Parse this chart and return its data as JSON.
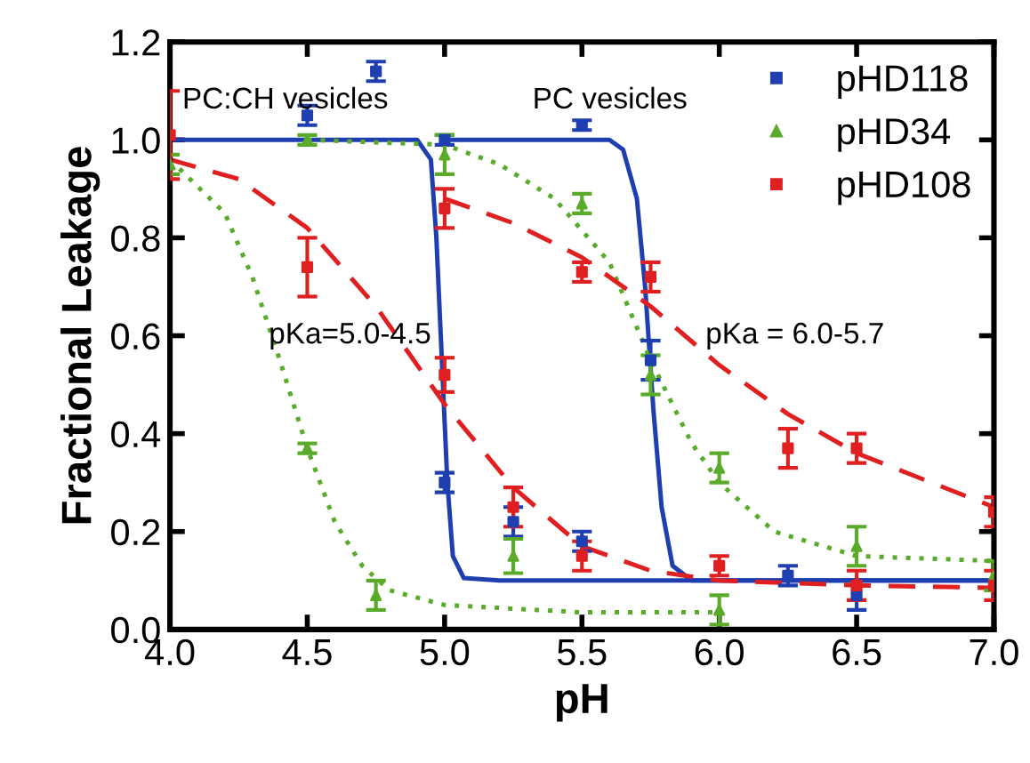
{
  "chart_data": {
    "type": "scatter",
    "xlabel": "pH",
    "ylabel": "Fractional Leakage",
    "xlim": [
      4.0,
      7.0
    ],
    "ylim": [
      0.0,
      1.2
    ],
    "xticks": [
      {
        "value": 4.0,
        "label": "4.0"
      },
      {
        "value": 4.5,
        "label": "4.5"
      },
      {
        "value": 5.0,
        "label": "5.0"
      },
      {
        "value": 5.5,
        "label": "5.5"
      },
      {
        "value": 6.0,
        "label": "6.0"
      },
      {
        "value": 6.5,
        "label": "6.5"
      },
      {
        "value": 7.0,
        "label": "7.0"
      }
    ],
    "yticks": [
      {
        "value": 0.0,
        "label": "0.0"
      },
      {
        "value": 0.2,
        "label": "0.2"
      },
      {
        "value": 0.4,
        "label": "0.4"
      },
      {
        "value": 0.6,
        "label": "0.6"
      },
      {
        "value": 0.8,
        "label": "0.8"
      },
      {
        "value": 1.0,
        "label": "1.0"
      },
      {
        "value": 1.2,
        "label": "1.2"
      }
    ],
    "legend": "top right",
    "grid": false,
    "series": [
      {
        "type": "line",
        "color": "#1f3fb0",
        "line_style": "solid",
        "marker": "none",
        "x": [
          4.0,
          4.9,
          4.95,
          4.97,
          4.99,
          5.01,
          5.03,
          5.07,
          5.2,
          7.0
        ],
        "values": [
          1.0,
          1.0,
          0.96,
          0.8,
          0.55,
          0.3,
          0.15,
          0.105,
          0.1,
          0.1
        ]
      },
      {
        "type": "line",
        "color": "#1f3fb0",
        "line_style": "solid",
        "marker": "none",
        "x": [
          5.0,
          5.6,
          5.65,
          5.7,
          5.73,
          5.76,
          5.79,
          5.83,
          5.9,
          7.0
        ],
        "values": [
          1.0,
          1.0,
          0.98,
          0.88,
          0.7,
          0.45,
          0.25,
          0.13,
          0.1,
          0.1
        ]
      },
      {
        "type": "line",
        "color": "#5aab2a",
        "line_style": "dotted",
        "marker": "none",
        "x": [
          4.0,
          4.2,
          4.3,
          4.4,
          4.5,
          4.6,
          4.7,
          4.8,
          5.0,
          5.5,
          6.0
        ],
        "values": [
          0.96,
          0.85,
          0.72,
          0.55,
          0.37,
          0.22,
          0.13,
          0.08,
          0.05,
          0.035,
          0.035
        ]
      },
      {
        "type": "line",
        "color": "#5aab2a",
        "line_style": "dotted",
        "marker": "none",
        "x": [
          4.5,
          5.0,
          5.2,
          5.4,
          5.6,
          5.75,
          5.9,
          6.0,
          6.2,
          6.5,
          7.0
        ],
        "values": [
          1.0,
          0.99,
          0.95,
          0.88,
          0.75,
          0.55,
          0.38,
          0.3,
          0.2,
          0.15,
          0.14
        ]
      },
      {
        "type": "line",
        "color": "#e02020",
        "line_style": "dashed",
        "marker": "none",
        "x": [
          4.0,
          4.25,
          4.5,
          4.75,
          5.0,
          5.25,
          5.5,
          5.75,
          6.0,
          6.5,
          7.0
        ],
        "values": [
          0.96,
          0.92,
          0.82,
          0.66,
          0.46,
          0.29,
          0.17,
          0.12,
          0.1,
          0.09,
          0.085
        ]
      },
      {
        "type": "line",
        "color": "#e02020",
        "line_style": "dashed",
        "marker": "none",
        "x": [
          5.0,
          5.25,
          5.5,
          5.75,
          6.0,
          6.25,
          6.5,
          7.0
        ],
        "values": [
          0.88,
          0.83,
          0.76,
          0.66,
          0.54,
          0.44,
          0.36,
          0.25
        ]
      },
      {
        "name": "pHD118",
        "color": "#1f3fb0",
        "marker": "square",
        "x": [
          4.5,
          4.75,
          5.0,
          5.0,
          5.25,
          5.5,
          5.5,
          5.75,
          6.25,
          6.5
        ],
        "values": [
          1.05,
          1.14,
          1.0,
          0.3,
          0.22,
          1.03,
          0.18,
          0.55,
          0.11,
          0.07
        ],
        "errors": [
          0.02,
          0.02,
          0.01,
          0.02,
          0.03,
          0.01,
          0.02,
          0.04,
          0.02,
          0.03
        ]
      },
      {
        "name": "pHD34",
        "color": "#5aab2a",
        "marker": "triangle",
        "x": [
          4.0,
          4.5,
          4.5,
          4.75,
          5.0,
          5.25,
          5.5,
          5.75,
          6.0,
          6.0,
          6.5,
          7.0
        ],
        "values": [
          0.95,
          1.0,
          0.37,
          0.07,
          0.97,
          0.15,
          0.87,
          0.52,
          0.33,
          0.04,
          0.17,
          0.11
        ],
        "errors": [
          0.02,
          0.01,
          0.01,
          0.03,
          0.04,
          0.035,
          0.02,
          0.04,
          0.03,
          0.03,
          0.04,
          0.03
        ]
      },
      {
        "name": "pHD108",
        "color": "#e02020",
        "marker": "square",
        "x": [
          4.0,
          4.5,
          5.0,
          5.0,
          5.25,
          5.5,
          5.5,
          5.75,
          6.0,
          6.25,
          6.5,
          6.5,
          7.0,
          7.0
        ],
        "values": [
          1.01,
          0.74,
          0.86,
          0.52,
          0.25,
          0.73,
          0.15,
          0.72,
          0.13,
          0.37,
          0.37,
          0.09,
          0.24,
          0.09
        ],
        "errors": [
          0.09,
          0.06,
          0.04,
          0.035,
          0.04,
          0.02,
          0.03,
          0.03,
          0.02,
          0.04,
          0.03,
          0.03,
          0.03,
          0.03
        ]
      }
    ],
    "annotations": [
      "PC:CH vesicles",
      "PC vesicles",
      "pKa=5.0-4.5",
      "pKa = 6.0-5.7"
    ]
  }
}
